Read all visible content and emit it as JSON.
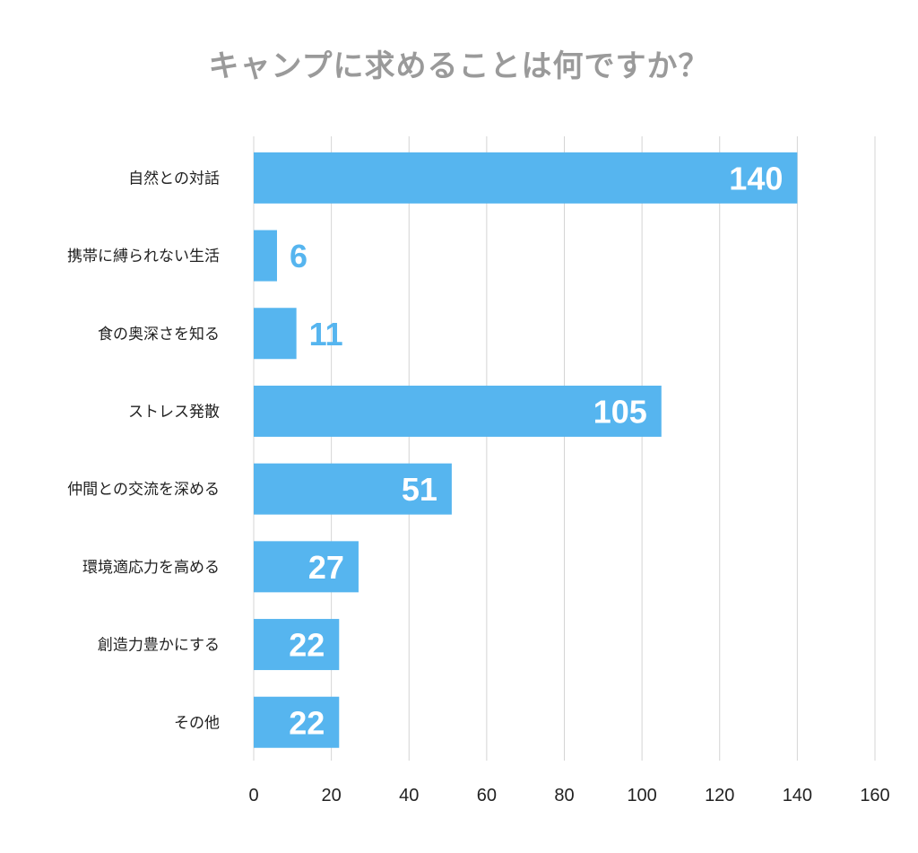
{
  "chart_data": {
    "type": "bar",
    "orientation": "horizontal",
    "title": "キャンプに求めることは何ですか？",
    "categories": [
      "自然との対話",
      "携帯に縛られない生活",
      "食の奥深さを知る",
      "ストレス発散",
      "仲間との交流を深める",
      "環境適応力を高める",
      "創造力豊かにする",
      "その他"
    ],
    "values": [
      140,
      6,
      11,
      105,
      51,
      27,
      22,
      22
    ],
    "xlim": [
      0,
      160
    ],
    "xticks": [
      0,
      20,
      40,
      60,
      80,
      100,
      120,
      140,
      160
    ],
    "grid": true,
    "bar_color": "#56b5ef",
    "label_inside_color": "#ffffff",
    "label_outside_color": "#56b5ef",
    "xlabel": "",
    "ylabel": ""
  }
}
